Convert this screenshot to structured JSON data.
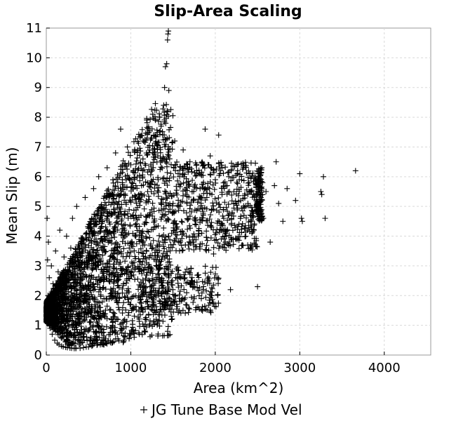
{
  "chart_data": {
    "type": "scatter",
    "title": "Slip-Area Scaling",
    "xlabel": "Area (km^2)",
    "ylabel": "Mean Slip (m)",
    "xlim": [
      0,
      4550
    ],
    "ylim": [
      0,
      11
    ],
    "xticks": [
      0,
      1000,
      2000,
      3000,
      4000
    ],
    "yticks": [
      0,
      1,
      2,
      3,
      4,
      5,
      6,
      7,
      8,
      9,
      10,
      11
    ],
    "grid": true,
    "legend": "bottom",
    "marker": "+",
    "series": [
      {
        "name": "JG Tune Base Mod Vel",
        "color": "#000000",
        "points": [
          [
            10,
            4.6
          ],
          [
            15,
            3.2
          ],
          [
            20,
            2.0
          ],
          [
            30,
            1.5
          ],
          [
            40,
            1.2
          ],
          [
            25,
            3.8
          ],
          [
            35,
            2.6
          ],
          [
            45,
            0.9
          ],
          [
            55,
            1.8
          ],
          [
            60,
            3.0
          ],
          [
            70,
            0.7
          ],
          [
            80,
            2.4
          ],
          [
            90,
            1.1
          ],
          [
            100,
            0.5
          ],
          [
            110,
            3.5
          ],
          [
            120,
            1.6
          ],
          [
            130,
            0.4
          ],
          [
            140,
            2.8
          ],
          [
            150,
            0.35
          ],
          [
            160,
            4.2
          ],
          [
            170,
            1.3
          ],
          [
            180,
            0.3
          ],
          [
            190,
            2.1
          ],
          [
            200,
            0.28
          ],
          [
            210,
            3.3
          ],
          [
            220,
            1.9
          ],
          [
            230,
            0.26
          ],
          [
            240,
            4.0
          ],
          [
            250,
            0.25
          ],
          [
            260,
            2.5
          ],
          [
            270,
            1.0
          ],
          [
            280,
            0.24
          ],
          [
            290,
            3.6
          ],
          [
            300,
            0.23
          ],
          [
            310,
            4.6
          ],
          [
            320,
            1.7
          ],
          [
            330,
            0.22
          ],
          [
            340,
            2.9
          ],
          [
            350,
            0.22
          ],
          [
            360,
            5.0
          ],
          [
            380,
            1.4
          ],
          [
            400,
            0.23
          ],
          [
            420,
            3.9
          ],
          [
            440,
            0.25
          ],
          [
            460,
            5.3
          ],
          [
            480,
            2.2
          ],
          [
            500,
            0.27
          ],
          [
            520,
            4.4
          ],
          [
            540,
            0.3
          ],
          [
            560,
            5.6
          ],
          [
            580,
            3.1
          ],
          [
            600,
            0.33
          ],
          [
            620,
            6.0
          ],
          [
            640,
            1.6
          ],
          [
            660,
            0.36
          ],
          [
            680,
            4.8
          ],
          [
            700,
            0.4
          ],
          [
            720,
            6.3
          ],
          [
            740,
            2.7
          ],
          [
            760,
            0.42
          ],
          [
            780,
            5.4
          ],
          [
            800,
            0.45
          ],
          [
            820,
            6.8
          ],
          [
            840,
            3.4
          ],
          [
            860,
            0.48
          ],
          [
            880,
            7.6
          ],
          [
            900,
            5.9
          ],
          [
            920,
            0.5
          ],
          [
            940,
            4.1
          ],
          [
            960,
            7.0
          ],
          [
            980,
            0.55
          ],
          [
            1000,
            6.4
          ],
          [
            1020,
            3.0
          ],
          [
            1040,
            0.6
          ],
          [
            1060,
            5.7
          ],
          [
            1080,
            6.9
          ],
          [
            1100,
            0.7
          ],
          [
            1120,
            4.7
          ],
          [
            1140,
            6.2
          ],
          [
            1160,
            0.8
          ],
          [
            1180,
            2.3
          ],
          [
            1200,
            5.5
          ],
          [
            1220,
            1.0
          ],
          [
            1240,
            7.3
          ],
          [
            1260,
            8.1
          ],
          [
            1280,
            4.3
          ],
          [
            1300,
            1.2
          ],
          [
            1320,
            6.7
          ],
          [
            1340,
            8.0
          ],
          [
            1360,
            7.7
          ],
          [
            1380,
            2.1
          ],
          [
            1400,
            9.0
          ],
          [
            1410,
            9.7
          ],
          [
            1425,
            9.8
          ],
          [
            1435,
            10.6
          ],
          [
            1440,
            10.8
          ],
          [
            1445,
            10.9
          ],
          [
            1450,
            8.9
          ],
          [
            1460,
            6.6
          ],
          [
            1480,
            1.3
          ],
          [
            1500,
            5.1
          ],
          [
            1520,
            7.2
          ],
          [
            1540,
            2.9
          ],
          [
            1560,
            6.1
          ],
          [
            1580,
            1.8
          ],
          [
            1600,
            4.5
          ],
          [
            1620,
            6.9
          ],
          [
            1640,
            2.6
          ],
          [
            1660,
            5.8
          ],
          [
            1680,
            3.7
          ],
          [
            1700,
            6.5
          ],
          [
            1720,
            2.4
          ],
          [
            1740,
            5.2
          ],
          [
            1760,
            4.4
          ],
          [
            1780,
            6.2
          ],
          [
            1800,
            2.7
          ],
          [
            1820,
            5.6
          ],
          [
            1840,
            4.1
          ],
          [
            1860,
            6.4
          ],
          [
            1880,
            7.6
          ],
          [
            1900,
            5.3
          ],
          [
            1920,
            2.5
          ],
          [
            1940,
            6.7
          ],
          [
            1960,
            4.9
          ],
          [
            1980,
            3.4
          ],
          [
            2000,
            5.9
          ],
          [
            2020,
            2.6
          ],
          [
            2040,
            7.4
          ],
          [
            2060,
            6.2
          ],
          [
            2080,
            5.4
          ],
          [
            2100,
            4.6
          ],
          [
            2120,
            3.8
          ],
          [
            2140,
            5.7
          ],
          [
            2160,
            6.0
          ],
          [
            2180,
            2.2
          ],
          [
            2200,
            4.8
          ],
          [
            2220,
            5.5
          ],
          [
            2240,
            3.9
          ],
          [
            2260,
            6.1
          ],
          [
            2280,
            4.4
          ],
          [
            2300,
            5.2
          ],
          [
            2320,
            3.7
          ],
          [
            2340,
            4.7
          ],
          [
            2360,
            5.0
          ],
          [
            2380,
            4.2
          ],
          [
            2400,
            5.8
          ],
          [
            2420,
            4.5
          ],
          [
            2450,
            5.4
          ],
          [
            2480,
            5.9
          ],
          [
            2500,
            2.3
          ],
          [
            2510,
            6.1
          ],
          [
            2520,
            5.6
          ],
          [
            2530,
            4.9
          ],
          [
            2540,
            5.3
          ],
          [
            2550,
            6.3
          ],
          [
            2560,
            5.8
          ],
          [
            2570,
            4.6
          ],
          [
            2600,
            5.5
          ],
          [
            2650,
            3.8
          ],
          [
            2700,
            5.7
          ],
          [
            2720,
            6.5
          ],
          [
            2750,
            5.1
          ],
          [
            2800,
            4.5
          ],
          [
            2850,
            5.6
          ],
          [
            2950,
            5.2
          ],
          [
            3000,
            6.1
          ],
          [
            3020,
            4.6
          ],
          [
            3030,
            4.5
          ],
          [
            3250,
            5.5
          ],
          [
            3260,
            5.4
          ],
          [
            3280,
            6.0
          ],
          [
            3300,
            4.6
          ],
          [
            3660,
            6.2
          ]
        ]
      }
    ]
  }
}
